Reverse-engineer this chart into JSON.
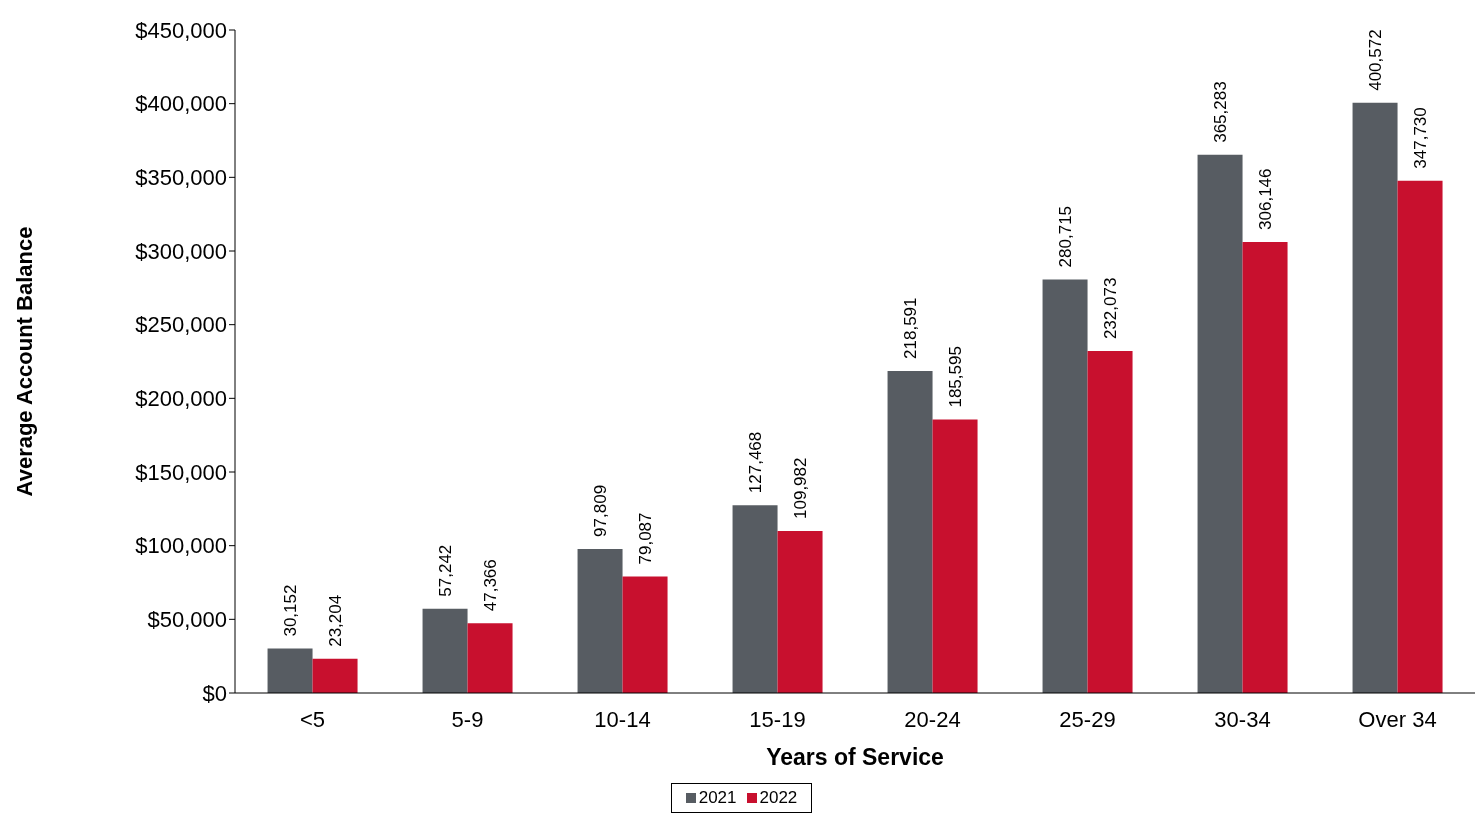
{
  "chart_data": {
    "type": "bar",
    "xlabel": "Years of Service",
    "ylabel": "Average Account Balance",
    "categories": [
      "<5",
      "5-9",
      "10-14",
      "15-19",
      "20-24",
      "25-29",
      "30-34",
      "Over 34"
    ],
    "series": [
      {
        "name": "2021",
        "color": "#575c62",
        "values": [
          30152,
          57242,
          97809,
          127468,
          218591,
          280715,
          365283,
          400572
        ],
        "value_labels": [
          "30,152",
          "57,242",
          "97,809",
          "127,468",
          "218,591",
          "280,715",
          "365,283",
          "400,572"
        ]
      },
      {
        "name": "2022",
        "color": "#c8102e",
        "values": [
          23204,
          47366,
          79087,
          109982,
          185595,
          232073,
          306146,
          347730
        ],
        "value_labels": [
          "23,204",
          "47,366",
          "79,087",
          "109,982",
          "185,595",
          "232,073",
          "306,146",
          "347,730"
        ]
      }
    ],
    "ylim": [
      0,
      450000
    ],
    "yticks": [
      {
        "value": 0,
        "label": "$0"
      },
      {
        "value": 50000,
        "label": "$50,000"
      },
      {
        "value": 100000,
        "label": "$100,000"
      },
      {
        "value": 150000,
        "label": "$150,000"
      },
      {
        "value": 200000,
        "label": "$200,000"
      },
      {
        "value": 250000,
        "label": "$250,000"
      },
      {
        "value": 300000,
        "label": "$300,000"
      },
      {
        "value": 350000,
        "label": "$350,000"
      },
      {
        "value": 400000,
        "label": "$400,000"
      },
      {
        "value": 450000,
        "label": "$450,000"
      }
    ],
    "grid": false,
    "legend": "bottom"
  }
}
